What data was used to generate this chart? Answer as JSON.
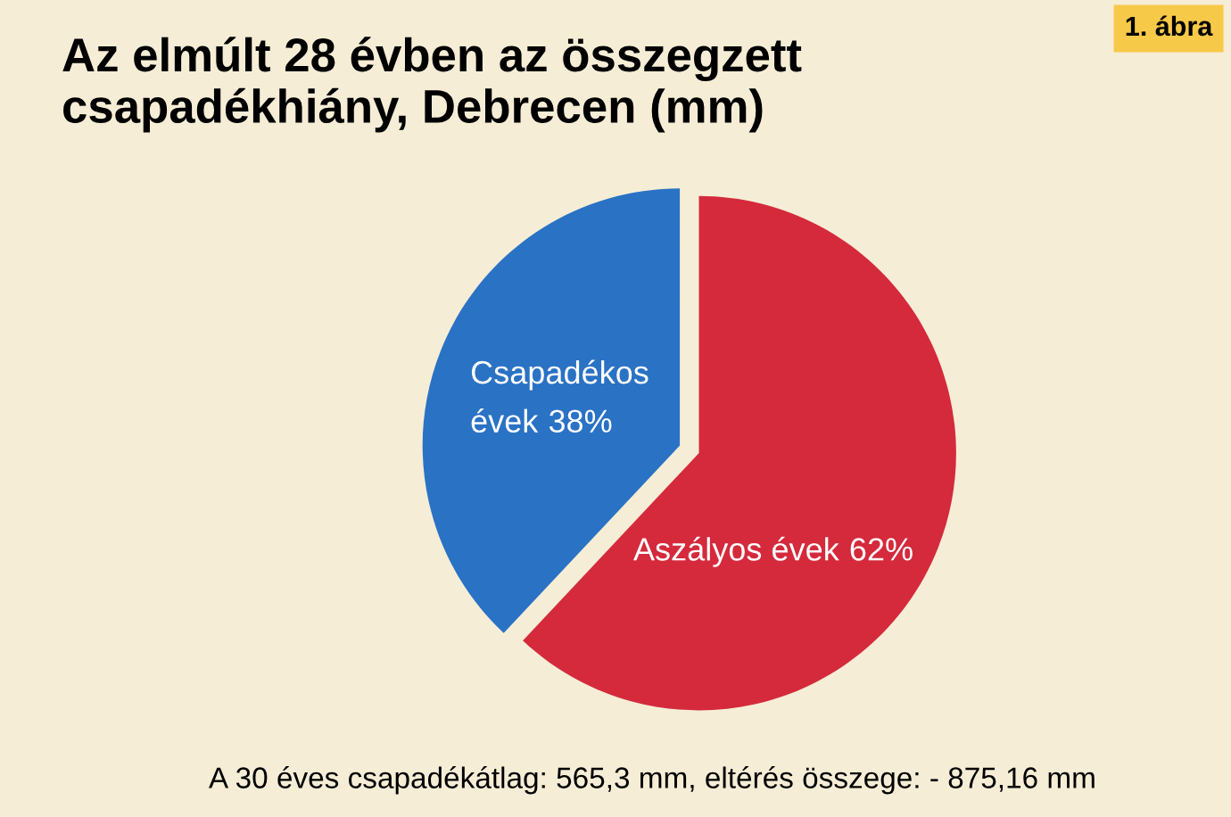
{
  "chart_data": {
    "type": "pie",
    "title": "Az elmúlt 28 évben az összegzett\ncsapadékhiány, Debrecen (mm)",
    "categories": [
      "Csapadékos\névek",
      "Aszályos évek"
    ],
    "values": [
      38,
      62
    ],
    "colors": [
      "#2a72c4",
      "#d42a3c"
    ],
    "value_labels": [
      "38%",
      "62%"
    ],
    "annotations": [
      "1. ábra",
      "A 30 éves csapadékátlag: 565,3 mm, eltérés összege: - 875,16 mm"
    ]
  }
}
